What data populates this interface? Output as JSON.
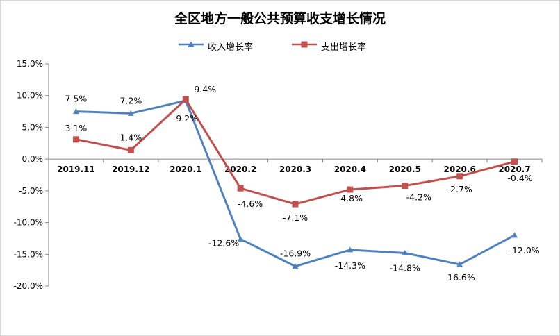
{
  "chart_data": {
    "type": "line",
    "title": "全区地方一般公共预算收支增长情况",
    "xlabel": "",
    "ylabel": "",
    "categories": [
      "2019.11",
      "2019.12",
      "2020.1",
      "2020.2",
      "2020.3",
      "2020.4",
      "2020.5",
      "2020.6",
      "2020.7"
    ],
    "ylim": [
      -20,
      15
    ],
    "yticks": [
      15,
      10,
      5,
      0,
      -5,
      -10,
      -15,
      -20
    ],
    "ytick_labels": [
      "15.0%",
      "10.0%",
      "5.0%",
      "0.0%",
      "-5.0%",
      "-10.0%",
      "-15.0%",
      "-20.0%"
    ],
    "grid": false,
    "legend_position": "top",
    "series": [
      {
        "name": "收入增长率",
        "color": "#4f81bd",
        "marker": "triangle",
        "values": [
          7.5,
          7.2,
          9.2,
          -12.6,
          -16.9,
          -14.3,
          -14.8,
          -16.6,
          -12.0
        ],
        "labels": [
          "7.5%",
          "7.2%",
          "9.2%",
          "-12.6%",
          "-16.9%",
          "-14.3%",
          "-14.8%",
          "-16.6%",
          "-12.0%"
        ]
      },
      {
        "name": "支出增长率",
        "color": "#c0504d",
        "marker": "square",
        "values": [
          3.1,
          1.4,
          9.4,
          -4.6,
          -7.1,
          -4.8,
          -4.2,
          -2.7,
          -0.4
        ],
        "labels": [
          "3.1%",
          "1.4%",
          "9.4%",
          "-4.6%",
          "-7.1%",
          "-4.8%",
          "-4.2%",
          "-2.7%",
          "-0.4%"
        ]
      }
    ]
  }
}
